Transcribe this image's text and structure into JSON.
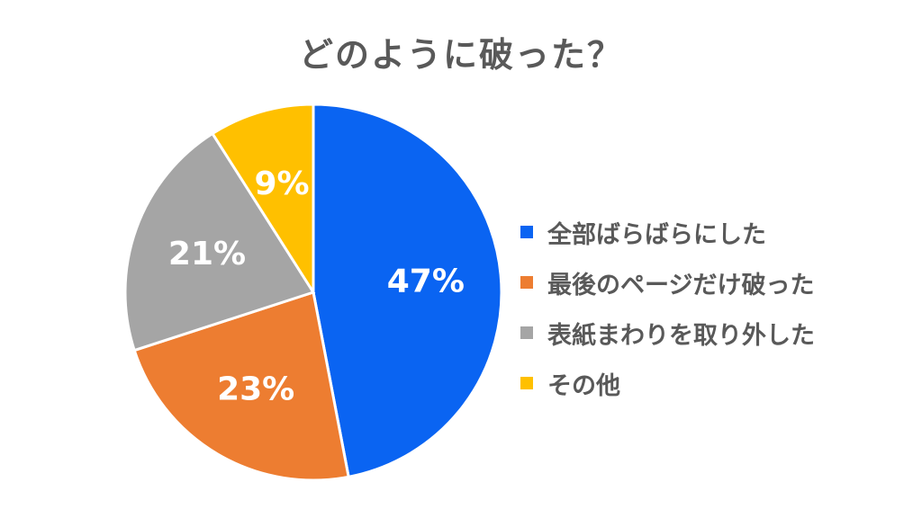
{
  "chart_data": {
    "type": "pie",
    "title": "どのように破った？",
    "legend_position": "right",
    "slices": [
      {
        "label": "全部ばらばらにした",
        "value": 47,
        "display": "47%",
        "color": "#0A64F2"
      },
      {
        "label": "最後のページだけ破った",
        "value": 23,
        "display": "23%",
        "color": "#ED7D31"
      },
      {
        "label": "表紙まわりを取り外した",
        "value": 21,
        "display": "21%",
        "color": "#A5A5A5"
      },
      {
        "label": "その他",
        "value": 9,
        "display": "9%",
        "color": "#FFC000"
      }
    ]
  }
}
